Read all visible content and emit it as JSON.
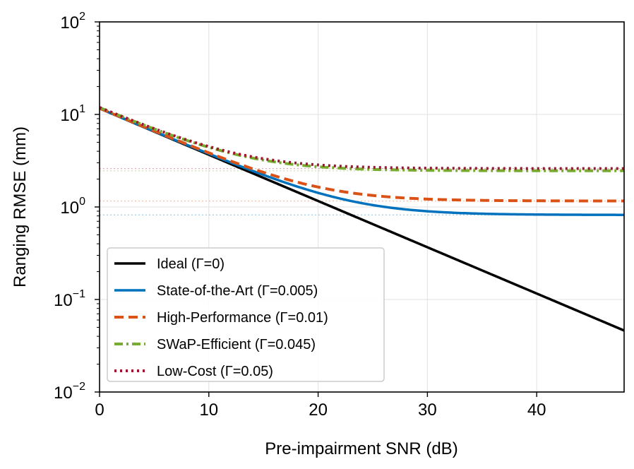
{
  "chart_data": {
    "type": "line",
    "title": "",
    "xlabel": "Pre-impairment SNR (dB)",
    "ylabel": "Ranging RMSE (mm)",
    "xlim": [
      0,
      48
    ],
    "ylim_log10": [
      -2,
      2
    ],
    "yscale": "log",
    "grid": true,
    "legend_position": "lower-left",
    "x_ticks": [
      0,
      10,
      20,
      30,
      40
    ],
    "x_tick_labels": [
      "0",
      "10",
      "20",
      "30",
      "40"
    ],
    "y_ticks_exp": [
      -2,
      -1,
      0,
      1,
      2
    ],
    "y_tick_base": "10",
    "y_tick_exponents": [
      "−2",
      "−1",
      "0",
      "1",
      "2"
    ],
    "ideal_rmse_at_0db": 11.6,
    "series": [
      {
        "name": "Ideal (Γ=0)",
        "gamma": 0,
        "floor": 0,
        "color": "#000000",
        "style": "solid"
      },
      {
        "name": "State-of-the-Art (Γ=0.005)",
        "gamma": 0.005,
        "floor": 0.82,
        "color": "#0072BD",
        "style": "solid"
      },
      {
        "name": "High-Performance (Γ=0.01)",
        "gamma": 0.01,
        "floor": 1.16,
        "color": "#D95319",
        "style": "dashed"
      },
      {
        "name": "SWaP-Efficient (Γ=0.045)",
        "gamma": 0.045,
        "floor": 2.46,
        "color": "#77AC30",
        "style": "dashdot"
      },
      {
        "name": "Low-Cost (Γ=0.05)",
        "gamma": 0.05,
        "floor": 2.6,
        "color": "#A2142F",
        "style": "dotted"
      }
    ]
  }
}
